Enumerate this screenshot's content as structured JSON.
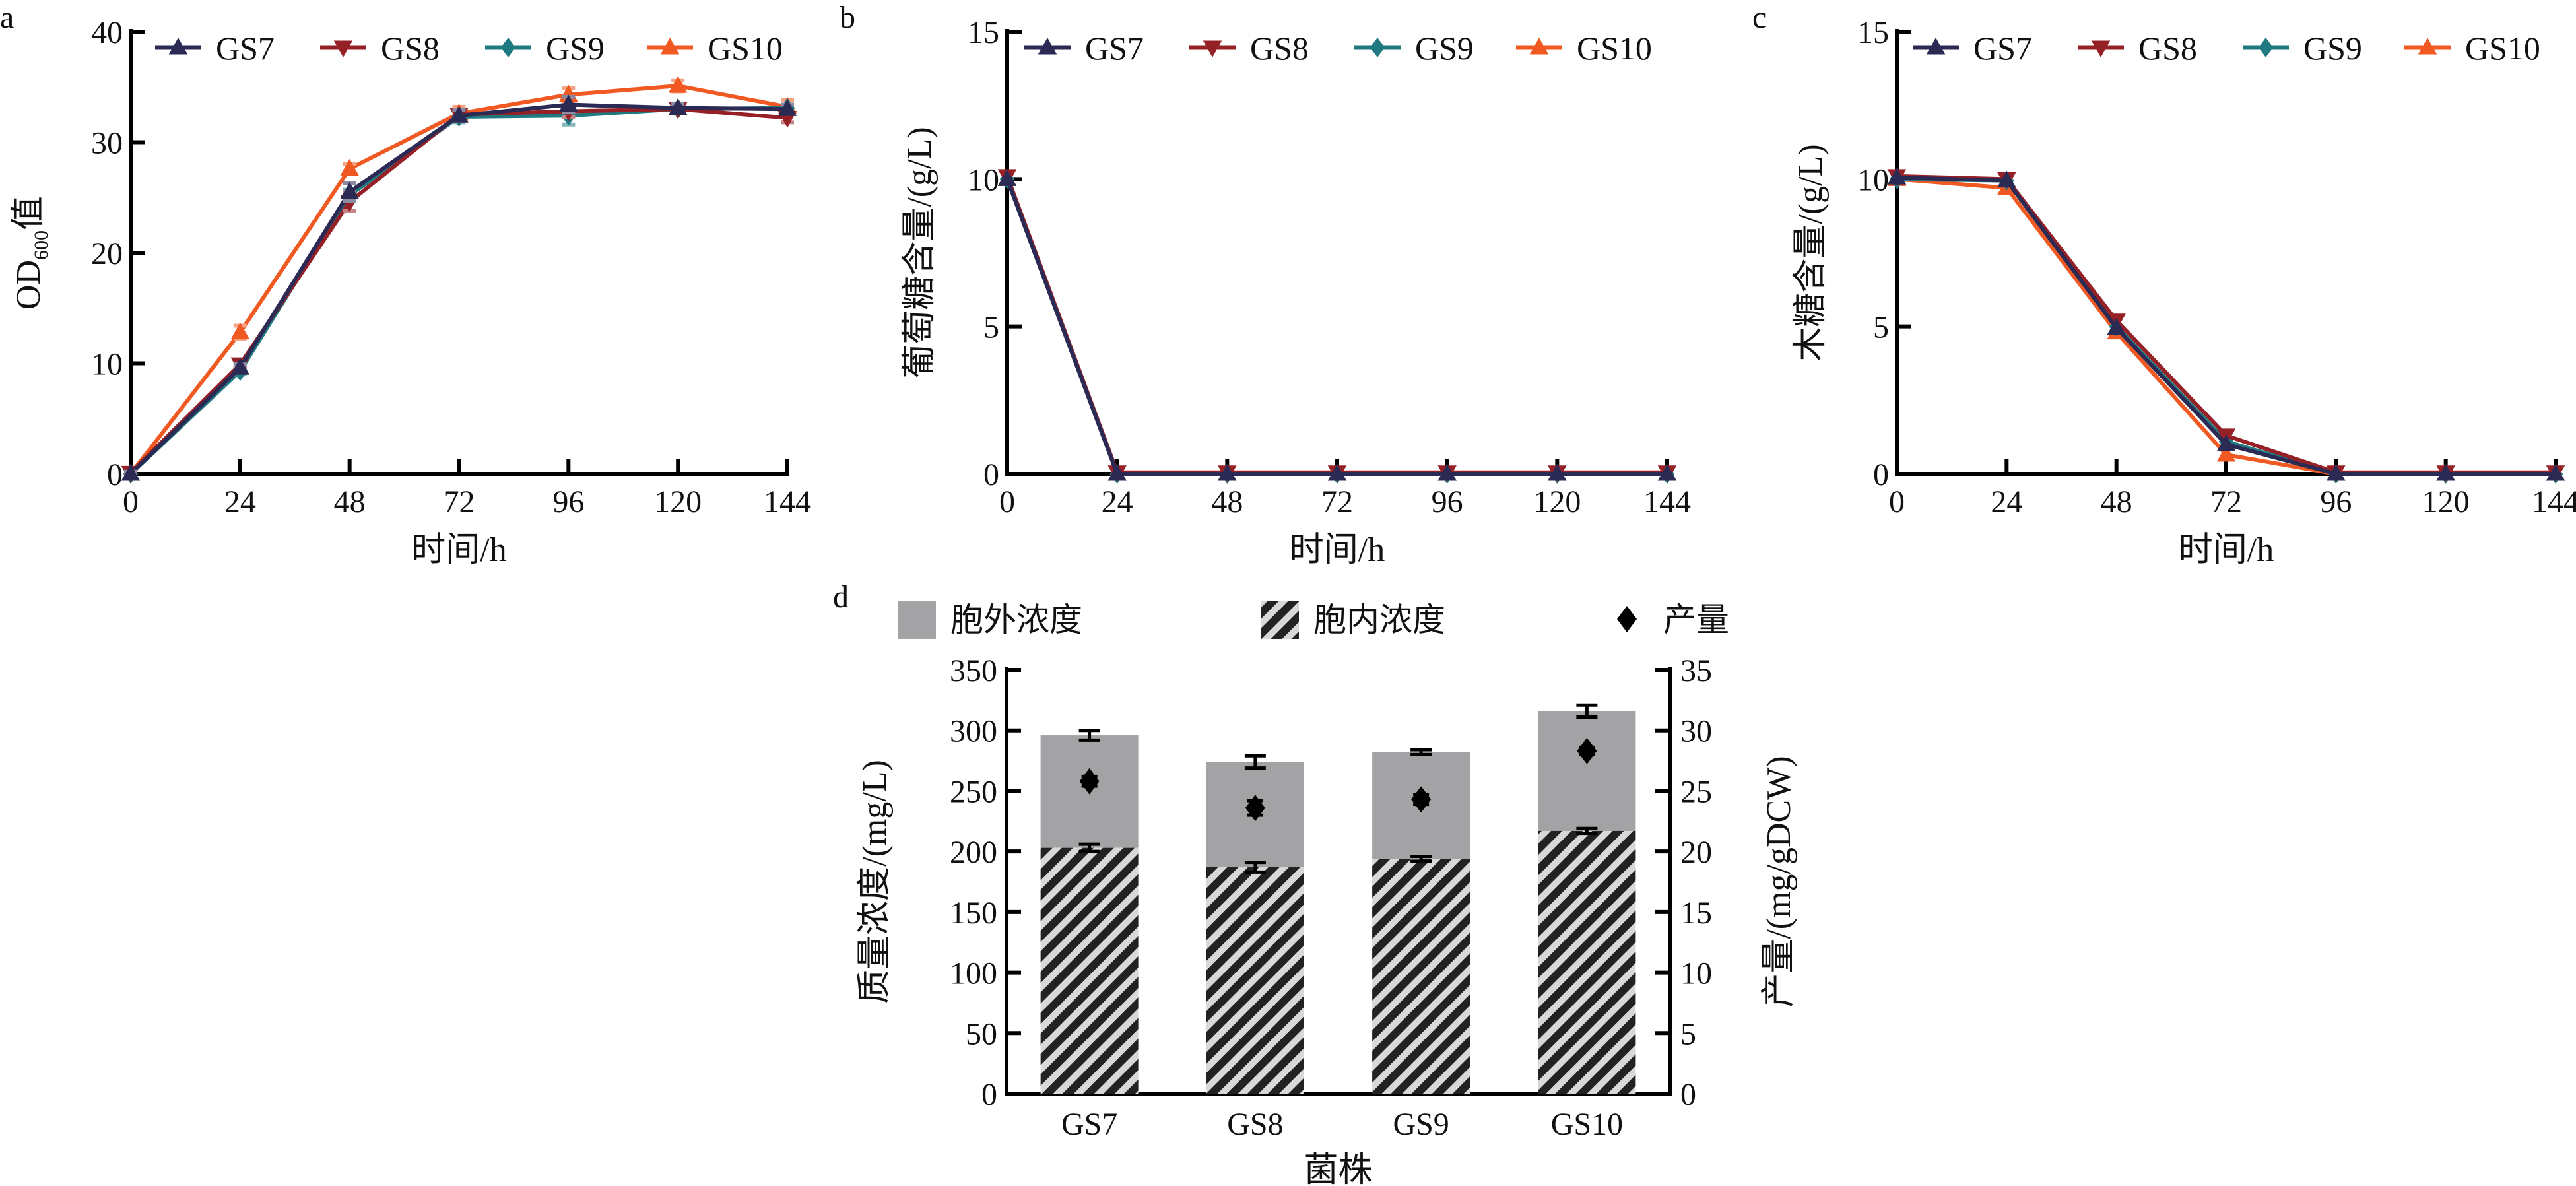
{
  "colors": {
    "GS7": "#2b2a55",
    "GS8": "#952127",
    "GS9": "#1e7a80",
    "GS10": "#f05a22",
    "extracellular": "#a3a3a6",
    "intracellular": "#222222",
    "axis": "#000000"
  },
  "chart_data": [
    {
      "panel": "a",
      "type": "line",
      "title": "",
      "xlabel": "时间/h",
      "ylabel": "OD600值",
      "ylabel_main": "OD",
      "ylabel_sub": "600",
      "ylabel_suffix": "值",
      "x": [
        0,
        24,
        48,
        72,
        96,
        120,
        144
      ],
      "xticks": [
        "0",
        "24",
        "48",
        "72",
        "96",
        "120",
        "144"
      ],
      "yticks": [
        "0",
        "10",
        "20",
        "30",
        "40"
      ],
      "ylim": [
        0,
        40
      ],
      "xlim": [
        0,
        144
      ],
      "legend": "top",
      "series": [
        {
          "name": "GS7",
          "marker": "triangle-up",
          "values": [
            0,
            9.6,
            25.5,
            32.4,
            33.4,
            33.1,
            33.0
          ],
          "errors": [
            0.2,
            0.3,
            0.8,
            0.5,
            0.7,
            0.4,
            0.4
          ]
        },
        {
          "name": "GS8",
          "marker": "triangle-down",
          "values": [
            0.1,
            9.9,
            24.6,
            32.5,
            32.8,
            33.0,
            32.2
          ],
          "errors": [
            0.2,
            0.3,
            0.8,
            0.4,
            0.5,
            0.4,
            0.4
          ]
        },
        {
          "name": "GS9",
          "marker": "diamond",
          "values": [
            0,
            9.3,
            25.2,
            32.3,
            32.4,
            33.0,
            33.1
          ],
          "errors": [
            0.2,
            0.3,
            0.5,
            0.5,
            0.8,
            0.3,
            0.3
          ]
        },
        {
          "name": "GS10",
          "marker": "triangle-up",
          "values": [
            0,
            12.8,
            27.6,
            32.6,
            34.3,
            35.1,
            33.2
          ],
          "errors": [
            0.2,
            0.6,
            0.4,
            0.6,
            0.6,
            0.5,
            0.6
          ]
        }
      ]
    },
    {
      "panel": "b",
      "type": "line",
      "title": "",
      "xlabel": "时间/h",
      "ylabel": "葡萄糖含量/(g/L)",
      "x": [
        0,
        24,
        48,
        72,
        96,
        120,
        144
      ],
      "xticks": [
        "0",
        "24",
        "48",
        "72",
        "96",
        "120",
        "144"
      ],
      "yticks": [
        "0",
        "5",
        "10",
        "15"
      ],
      "ylim": [
        0,
        15
      ],
      "xlim": [
        0,
        144
      ],
      "legend": "top",
      "series": [
        {
          "name": "GS7",
          "marker": "triangle-up",
          "values": [
            10.0,
            0,
            0,
            0,
            0,
            0,
            0
          ]
        },
        {
          "name": "GS8",
          "marker": "triangle-down",
          "values": [
            10.1,
            0.05,
            0.05,
            0.05,
            0.05,
            0.05,
            0.05
          ]
        },
        {
          "name": "GS9",
          "marker": "diamond",
          "values": [
            10.0,
            0,
            0,
            0,
            0,
            0,
            0
          ]
        },
        {
          "name": "GS10",
          "marker": "triangle-up",
          "values": [
            10.0,
            0,
            0,
            0,
            0,
            0,
            0
          ]
        }
      ]
    },
    {
      "panel": "c",
      "type": "line",
      "title": "",
      "xlabel": "时间/h",
      "ylabel": "木糖含量/(g/L)",
      "x": [
        0,
        24,
        48,
        72,
        96,
        120,
        144
      ],
      "xticks": [
        "0",
        "24",
        "48",
        "72",
        "96",
        "120",
        "144"
      ],
      "yticks": [
        "0",
        "5",
        "10",
        "15"
      ],
      "ylim": [
        0,
        15
      ],
      "xlim": [
        0,
        144
      ],
      "legend": "top",
      "series": [
        {
          "name": "GS7",
          "marker": "triangle-up",
          "values": [
            10.05,
            9.95,
            4.95,
            1.0,
            0,
            0,
            0
          ]
        },
        {
          "name": "GS8",
          "marker": "triangle-down",
          "values": [
            10.1,
            10.0,
            5.2,
            1.3,
            0.05,
            0.05,
            0.05
          ]
        },
        {
          "name": "GS9",
          "marker": "diamond",
          "values": [
            10.0,
            9.95,
            5.0,
            1.1,
            0,
            0,
            0
          ]
        },
        {
          "name": "GS10",
          "marker": "triangle-up",
          "values": [
            10.0,
            9.7,
            4.8,
            0.65,
            0,
            0,
            0
          ]
        }
      ]
    },
    {
      "panel": "d",
      "type": "bar",
      "stacked": true,
      "title": "",
      "xlabel": "菌株",
      "ylabel": "质量浓度/(mg/L)",
      "ylabel_right": "产量/(mg/gDCW)",
      "categories": [
        "GS7",
        "GS8",
        "GS9",
        "GS10"
      ],
      "yticks": [
        "0",
        "50",
        "100",
        "150",
        "200",
        "250",
        "300",
        "350"
      ],
      "yticks_right": [
        "0",
        "5",
        "10",
        "15",
        "20",
        "25",
        "30",
        "35"
      ],
      "ylim": [
        0,
        350
      ],
      "ylim_right": [
        0,
        35
      ],
      "legend": "top",
      "legend_labels": {
        "extracellular": "胞外浓度",
        "intracellular": "胞内浓度",
        "yield": "产量"
      },
      "series": [
        {
          "name": "胞内浓度",
          "key": "intracellular",
          "pattern": "hatched",
          "values": [
            203,
            187,
            194,
            217
          ],
          "errors": [
            3,
            4,
            2,
            2
          ]
        },
        {
          "name": "胞外浓度",
          "key": "extracellular",
          "pattern": "solid",
          "values": [
            93,
            87,
            88,
            99
          ],
          "totals": [
            296,
            274,
            282,
            316
          ],
          "total_errors": [
            4,
            5,
            2,
            5
          ]
        },
        {
          "name": "产量",
          "key": "yield",
          "axis": "right",
          "marker": "diamond",
          "values": [
            25.8,
            23.6,
            24.3,
            28.3
          ],
          "errors": [
            0.4,
            0.6,
            0.4,
            0.3
          ]
        }
      ]
    }
  ],
  "panels": {
    "a": {
      "label": "a"
    },
    "b": {
      "label": "b"
    },
    "c": {
      "label": "c"
    },
    "d": {
      "label": "d"
    }
  }
}
